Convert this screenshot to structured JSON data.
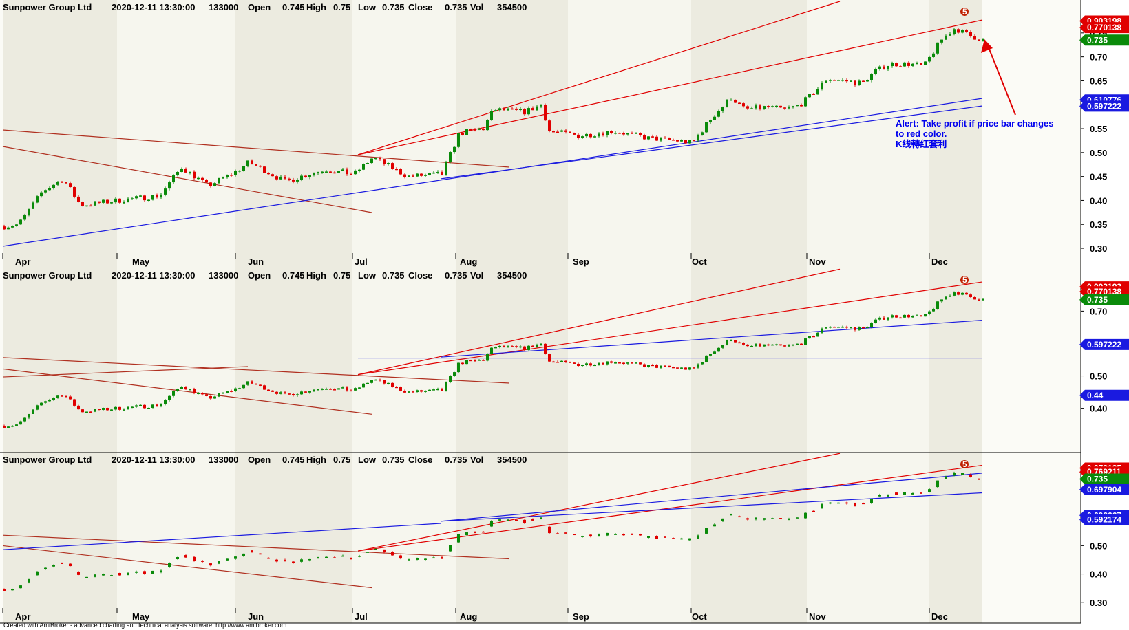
{
  "footer": "Created with AmiBroker - advanced charting and technical analysis software. http://www.amibroker.com",
  "colors": {
    "up": "#0a8a0a",
    "down": "#e00000",
    "trend_red": "#e00000",
    "trend_brown": "#b03020",
    "trend_blue": "#1a1ae0",
    "band_shade": "#ecebe0",
    "band_light": "#f6f6ee"
  },
  "annotation": {
    "lines": [
      "Alert: Take profit  if price bar changes",
      " to red color.",
      "K线轉红套利"
    ]
  },
  "chart_data": [
    {
      "type": "candlestick",
      "header": {
        "symbol": "Sunpower Group Ltd",
        "datetime": "2020-12-11 13:30:00",
        "volume_code": "133000",
        "open_label": "Open",
        "open": "0.745",
        "high_label": "High",
        "high": "0.75",
        "low_label": "Low",
        "low": "0.735",
        "close_label": "Close",
        "close": "0.735",
        "vol_label": "Vol",
        "vol": "354500"
      },
      "x_labels": [
        "Apr",
        "May",
        "Jun",
        "Jul",
        "Aug",
        "Sep",
        "Oct",
        "Nov",
        "Dec"
      ],
      "y_ticks": [
        "0.75",
        "0.70",
        "0.65",
        "0.60",
        "0.55",
        "0.50",
        "0.45",
        "0.40",
        "0.35",
        "0.30"
      ],
      "ylim": [
        0.29,
        0.79
      ],
      "price_flags": [
        {
          "value": 0.775,
          "label": "0.903198",
          "color": "#e00000"
        },
        {
          "value": 0.761,
          "label": "0.770138",
          "color": "#e00000"
        },
        {
          "value": 0.735,
          "label": "0.735",
          "color": "#0a8a0a"
        },
        {
          "value": 0.61,
          "label": "0.610776",
          "color": "#1a1ae0"
        },
        {
          "value": 0.597,
          "label": "0.597222",
          "color": "#1a1ae0"
        }
      ],
      "signal_marker": "5",
      "bar_style": "candle"
    },
    {
      "type": "candlestick",
      "header": {
        "symbol": "Sunpower Group Ltd",
        "datetime": "2020-12-11 13:30:00",
        "volume_code": "133000",
        "open_label": "Open",
        "open": "0.745",
        "high_label": "High",
        "high": "0.75",
        "low_label": "Low",
        "low": "0.735",
        "close_label": "Close",
        "close": "0.735",
        "vol_label": "Vol",
        "vol": "354500"
      },
      "y_ticks": [
        "0.70",
        "0.50",
        "0.40"
      ],
      "ylim": [
        0.31,
        0.79
      ],
      "price_flags": [
        {
          "value": 0.775,
          "label": "0.903193",
          "color": "#e00000"
        },
        {
          "value": 0.76,
          "label": "0.770138",
          "color": "#e00000"
        },
        {
          "value": 0.735,
          "label": "0.735",
          "color": "#0a8a0a"
        },
        {
          "value": 0.597,
          "label": "0.597222",
          "color": "#1a1ae0"
        },
        {
          "value": 0.44,
          "label": "0.44",
          "color": "#1a1ae0"
        }
      ],
      "signal_marker": "5",
      "bar_style": "candle"
    },
    {
      "type": "candlestick",
      "header": {
        "symbol": "Sunpower Group Ltd",
        "datetime": "2020-12-11 13:30:00",
        "volume_code": "133000",
        "open_label": "Open",
        "open": "0.745",
        "high_label": "High",
        "high": "0.75",
        "low_label": "Low",
        "low": "0.735",
        "close_label": "Close",
        "close": "0.735",
        "vol_label": "Vol",
        "vol": "354500"
      },
      "x_labels": [
        "Apr",
        "May",
        "Jun",
        "Jul",
        "Aug",
        "Sep",
        "Oct",
        "Nov",
        "Dec"
      ],
      "y_ticks": [
        "0.50",
        "0.40",
        "0.30"
      ],
      "ylim": [
        0.28,
        0.78
      ],
      "price_flags": [
        {
          "value": 0.774,
          "label": "0.873125",
          "color": "#e00000"
        },
        {
          "value": 0.76,
          "label": "0.769211",
          "color": "#e00000"
        },
        {
          "value": 0.735,
          "label": "0.735",
          "color": "#0a8a0a"
        },
        {
          "value": 0.698,
          "label": "0.697904",
          "color": "#1a1ae0"
        },
        {
          "value": 0.607,
          "label": "0.606667",
          "color": "#1a1ae0"
        },
        {
          "value": 0.592,
          "label": "0.592174",
          "color": "#1a1ae0"
        }
      ],
      "signal_marker": "5",
      "bar_style": "sparse"
    }
  ]
}
